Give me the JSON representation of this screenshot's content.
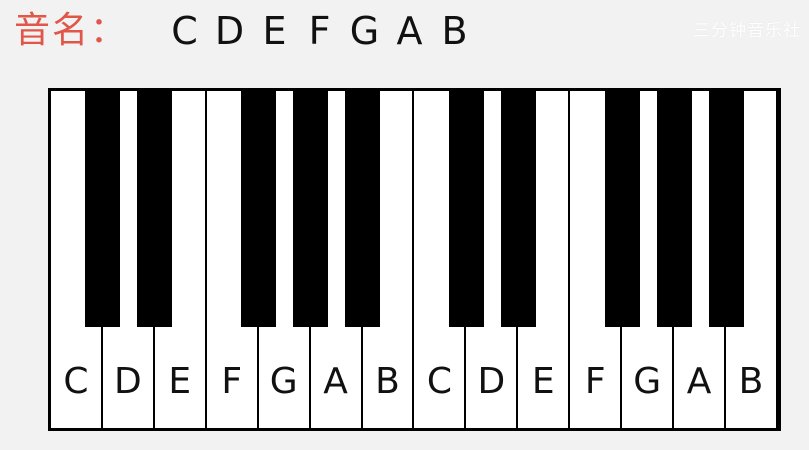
{
  "header": {
    "label": "音名：",
    "notes": [
      "C",
      "D",
      "E",
      "F",
      "G",
      "A",
      "B"
    ]
  },
  "watermark": "三分钟音乐社",
  "keyboard": {
    "white_keys": [
      "C",
      "D",
      "E",
      "F",
      "G",
      "A",
      "B",
      "C",
      "D",
      "E",
      "F",
      "G",
      "A",
      "B"
    ],
    "black_key_after_white_index": [
      0,
      1,
      3,
      4,
      5,
      7,
      8,
      10,
      11,
      12
    ]
  },
  "colors": {
    "label": "#e0574a",
    "background": "#f2f2f2",
    "key_white": "#ffffff",
    "key_black": "#000000"
  }
}
